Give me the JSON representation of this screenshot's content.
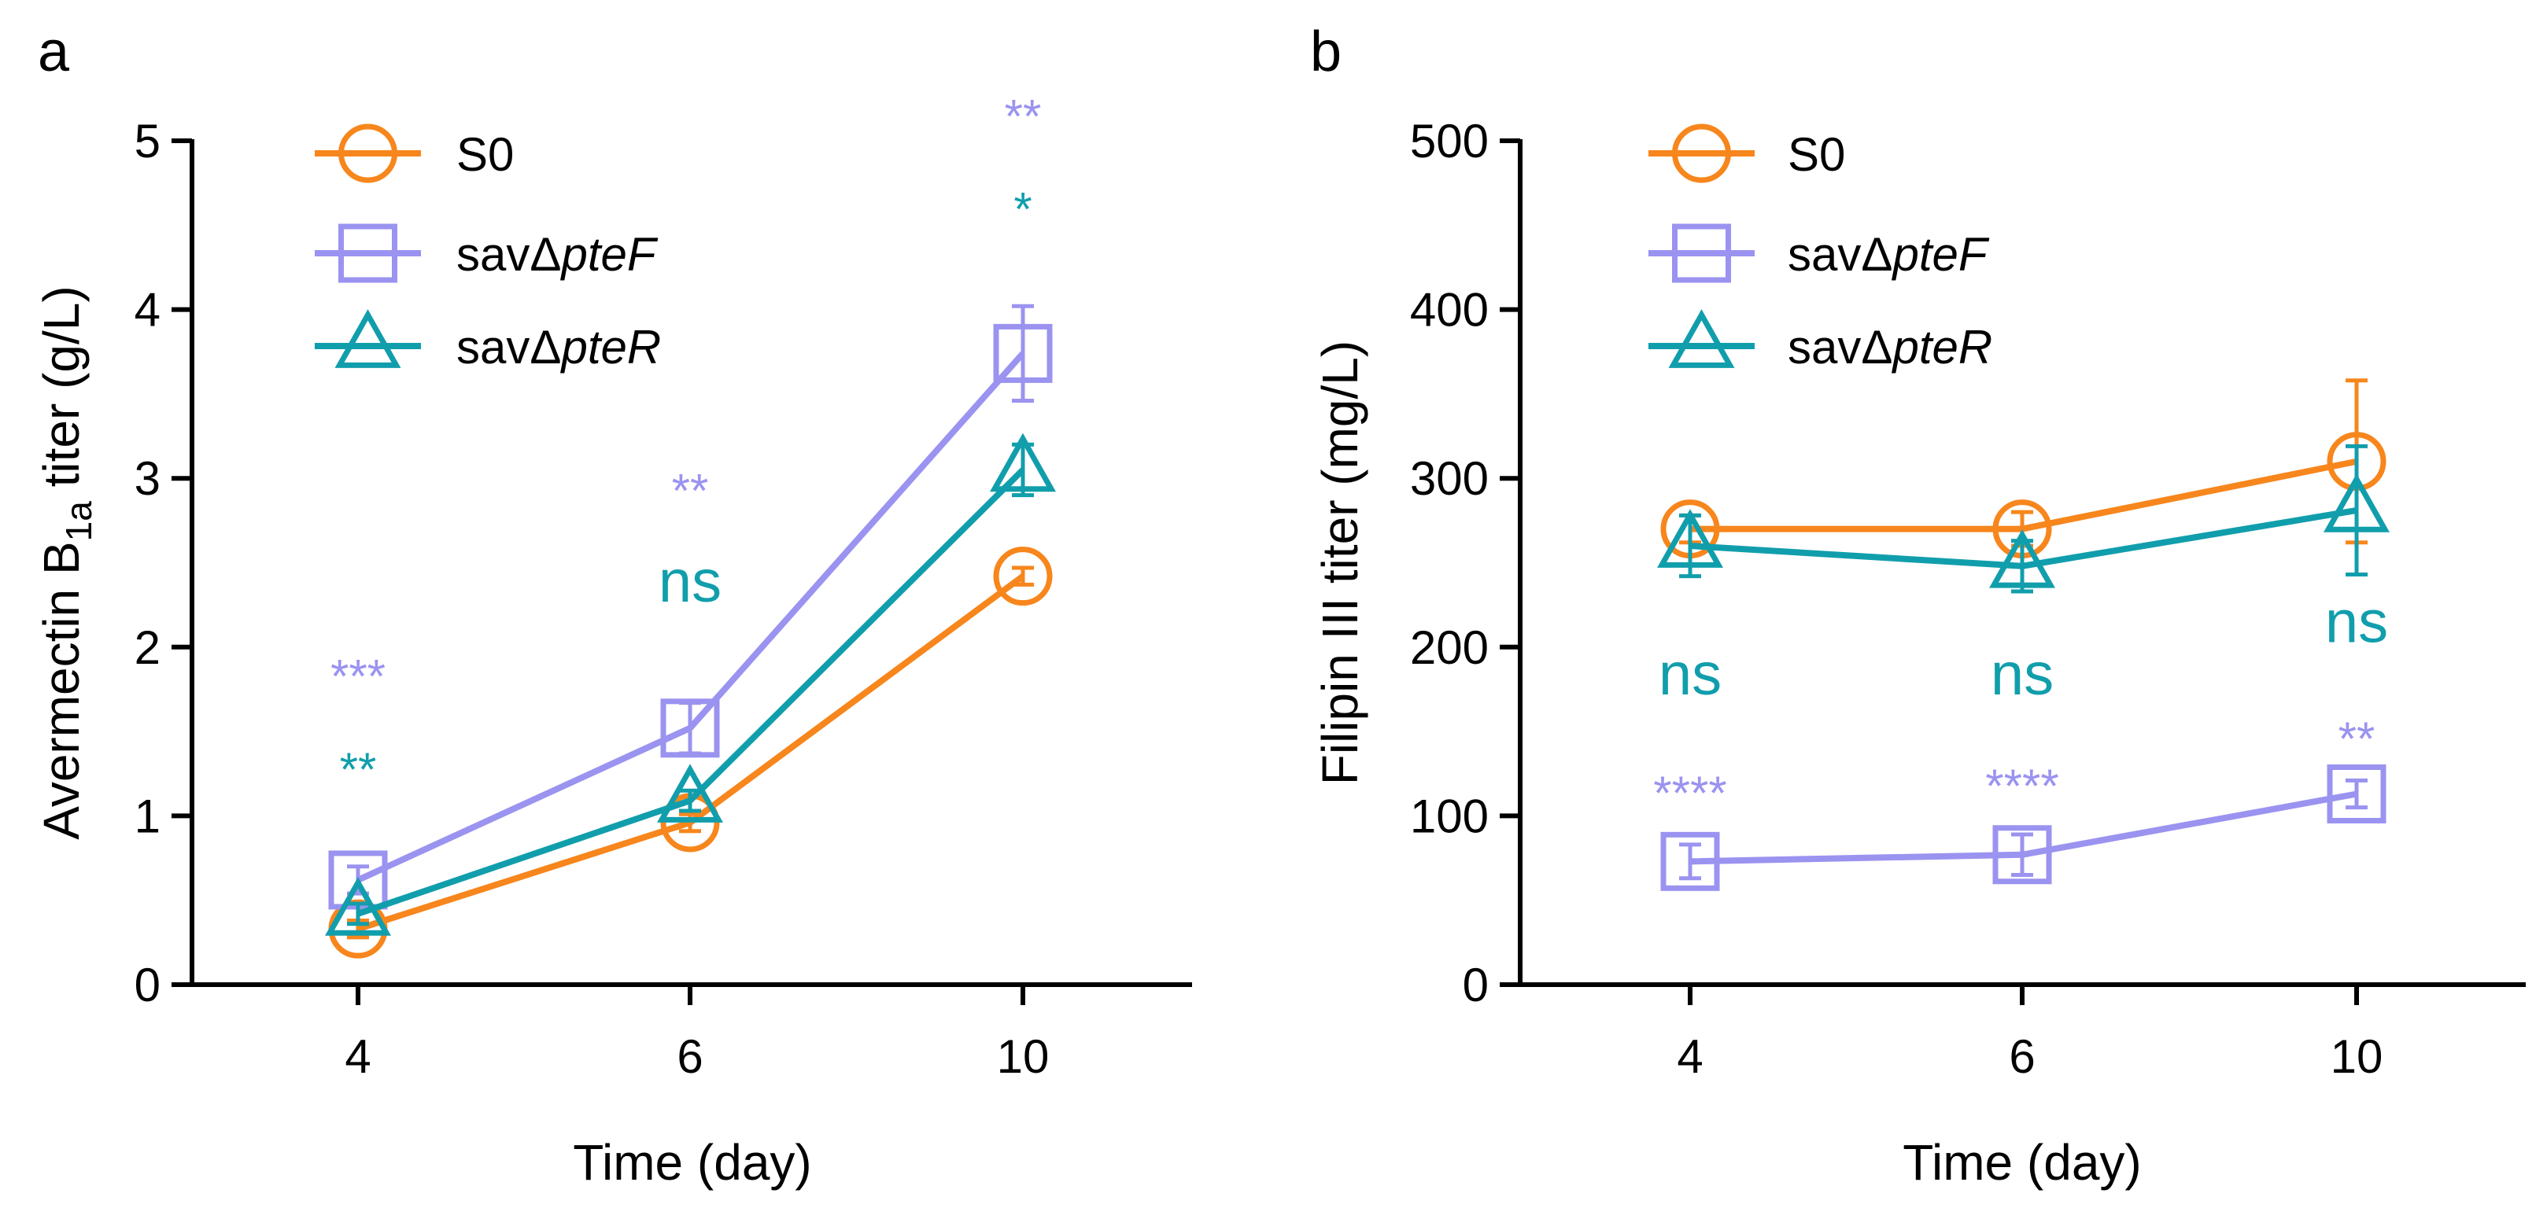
{
  "chart_data": [
    {
      "panel": "a",
      "type": "line",
      "x": [
        4,
        6,
        10
      ],
      "xticks": [
        "4",
        "6",
        "10"
      ],
      "yticks": [
        "0",
        "1",
        "2",
        "3",
        "4",
        "5"
      ],
      "xlabel": "Time (day)",
      "ylabel": {
        "pre": "Avermectin B",
        "sub": "1a",
        "post": " titer (g/L)"
      },
      "ylim": [
        0,
        5
      ],
      "legend_position": "top-left",
      "series": [
        {
          "name": "S0",
          "name_plain": "S0",
          "name_italic": "",
          "color": "#F7861C",
          "marker": "circle",
          "values": [
            0.33,
            0.96,
            2.42
          ],
          "errors": [
            0.05,
            0.05,
            0.05
          ]
        },
        {
          "name": "savΔpteF",
          "name_plain": "savΔ",
          "name_italic": "pteF",
          "color": "#9B93F0",
          "marker": "square",
          "values": [
            0.62,
            1.52,
            3.74
          ],
          "errors": [
            0.08,
            0.15,
            0.28
          ]
        },
        {
          "name": "savΔpteR",
          "name_plain": "savΔ",
          "name_italic": "pteR",
          "color": "#119EAC",
          "marker": "triangle",
          "values": [
            0.42,
            1.09,
            3.05
          ],
          "errors": [
            0.06,
            0.06,
            0.15
          ]
        }
      ],
      "annotations": [
        {
          "x": 4,
          "y": 1.73,
          "text": "***",
          "color": "#9B93F0",
          "size": "sig"
        },
        {
          "x": 4,
          "y": 1.18,
          "text": "**",
          "color": "#119EAC",
          "size": "sig"
        },
        {
          "x": 6,
          "y": 2.83,
          "text": "**",
          "color": "#9B93F0",
          "size": "sig"
        },
        {
          "x": 6,
          "y": 2.27,
          "text": "ns",
          "color": "#119EAC",
          "size": "sig-ns"
        },
        {
          "x": 10,
          "y": 5.05,
          "text": "**",
          "color": "#9B93F0",
          "size": "sig"
        },
        {
          "x": 10,
          "y": 4.5,
          "text": "*",
          "color": "#119EAC",
          "size": "sig"
        }
      ]
    },
    {
      "panel": "b",
      "type": "line",
      "x": [
        4,
        6,
        10
      ],
      "xticks": [
        "4",
        "6",
        "10"
      ],
      "yticks": [
        "0",
        "100",
        "200",
        "300",
        "400",
        "500"
      ],
      "xlabel": "Time (day)",
      "ylabel": {
        "pre": "Filipin III titer (mg/L)",
        "sub": "",
        "post": ""
      },
      "ylim": [
        0,
        500
      ],
      "legend_position": "top-left",
      "series": [
        {
          "name": "S0",
          "name_plain": "S0",
          "name_italic": "",
          "color": "#F7861C",
          "marker": "circle",
          "values": [
            270,
            270,
            310
          ],
          "errors": [
            8,
            10,
            48
          ]
        },
        {
          "name": "savΔpteF",
          "name_plain": "savΔ",
          "name_italic": "pteF",
          "color": "#9B93F0",
          "marker": "square",
          "values": [
            73,
            77,
            113
          ],
          "errors": [
            10,
            12,
            8
          ]
        },
        {
          "name": "savΔpteR",
          "name_plain": "savΔ",
          "name_italic": "pteR",
          "color": "#119EAC",
          "marker": "triangle",
          "values": [
            260,
            248,
            281
          ],
          "errors": [
            18,
            15,
            38
          ]
        }
      ],
      "annotations": [
        {
          "x": 4,
          "y": 172,
          "text": "ns",
          "color": "#119EAC",
          "size": "sig-ns"
        },
        {
          "x": 6,
          "y": 172,
          "text": "ns",
          "color": "#119EAC",
          "size": "sig-ns"
        },
        {
          "x": 10,
          "y": 203,
          "text": "ns",
          "color": "#119EAC",
          "size": "sig-ns"
        },
        {
          "x": 4,
          "y": 104,
          "text": "****",
          "color": "#9B93F0",
          "size": "sig"
        },
        {
          "x": 6,
          "y": 108,
          "text": "****",
          "color": "#9B93F0",
          "size": "sig"
        },
        {
          "x": 10,
          "y": 136,
          "text": "**",
          "color": "#9B93F0",
          "size": "sig"
        }
      ]
    }
  ]
}
